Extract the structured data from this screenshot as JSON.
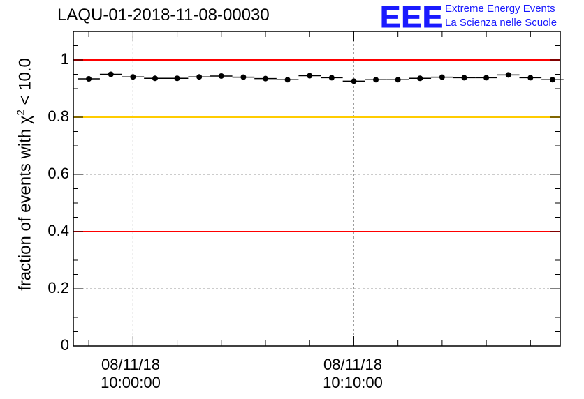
{
  "title": "LAQU-01-2018-11-08-00030",
  "logo": {
    "mark": "EEE",
    "line1": "Extreme Energy Events",
    "line2": "La Scienza nelle Scuole"
  },
  "ylabel": {
    "prefix": "fraction of events with ",
    "chi": "χ",
    "sup": "2",
    "suffix": " < 10.0"
  },
  "xticks": [
    {
      "date": "08/11/18",
      "time": "10:00:00"
    },
    {
      "date": "08/11/18",
      "time": "10:10:00"
    }
  ],
  "colors": {
    "red": "#ff0000",
    "yellow": "#ffcc00",
    "grid": "#999999",
    "logo": "#1a1aff"
  },
  "chart_data": {
    "type": "scatter",
    "title": "LAQU-01-2018-11-08-00030",
    "xlabel": "",
    "ylabel": "fraction of events with χ2 < 10.0",
    "ylim": [
      0,
      1.1
    ],
    "yticks": [
      0,
      0.2,
      0.4,
      0.6,
      0.8,
      1
    ],
    "ytick_labels": [
      "0",
      "0.2",
      "0.4",
      "0.6",
      "0.8",
      "1"
    ],
    "xlim_minutes": [
      -2.7,
      19.35
    ],
    "xtick_minutes": [
      0,
      10
    ],
    "minor_xtick_minutes": [
      -2,
      2,
      4,
      6,
      8,
      12,
      14,
      16,
      18
    ],
    "bin_width_minutes": 1,
    "x_minutes": [
      -2,
      -1,
      0,
      1,
      2,
      3,
      4,
      5,
      6,
      7,
      8,
      9,
      10,
      11,
      12,
      13,
      14,
      15,
      16,
      17,
      18,
      19
    ],
    "values": [
      0.934,
      0.95,
      0.941,
      0.936,
      0.936,
      0.941,
      0.944,
      0.94,
      0.935,
      0.931,
      0.945,
      0.938,
      0.926,
      0.931,
      0.931,
      0.936,
      0.94,
      0.938,
      0.938,
      0.948,
      0.938,
      0.931
    ],
    "reference_lines": [
      {
        "value": 1.0,
        "color": "red"
      },
      {
        "value": 0.8,
        "color": "yellow"
      },
      {
        "value": 0.4,
        "color": "red"
      }
    ],
    "grid": true
  }
}
